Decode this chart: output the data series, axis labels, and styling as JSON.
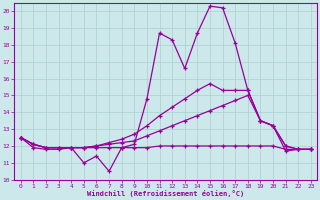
{
  "background_color": "#cce8ea",
  "grid_color": "#aacfcf",
  "line_color": "#990099",
  "x_label": "Windchill (Refroidissement éolien,°C)",
  "xlim": [
    -0.5,
    23.5
  ],
  "ylim": [
    10,
    20.5
  ],
  "yticks": [
    10,
    11,
    12,
    13,
    14,
    15,
    16,
    17,
    18,
    19,
    20
  ],
  "xticks": [
    0,
    1,
    2,
    3,
    4,
    5,
    6,
    7,
    8,
    9,
    10,
    11,
    12,
    13,
    14,
    15,
    16,
    17,
    18,
    19,
    20,
    21,
    22,
    23
  ],
  "series": [
    [
      12.5,
      11.9,
      11.8,
      11.8,
      11.9,
      11.0,
      11.4,
      10.5,
      11.9,
      12.1,
      14.8,
      18.7,
      18.3,
      16.6,
      18.7,
      20.3,
      20.2,
      18.1,
      15.3,
      13.5,
      13.2,
      11.7,
      11.8,
      11.8
    ],
    [
      12.5,
      12.1,
      11.9,
      11.9,
      11.9,
      11.9,
      11.9,
      11.9,
      11.9,
      11.9,
      11.9,
      12.0,
      12.0,
      12.0,
      12.0,
      12.0,
      12.0,
      12.0,
      12.0,
      12.0,
      12.0,
      11.8,
      11.8,
      11.8
    ],
    [
      12.5,
      12.1,
      11.9,
      11.9,
      11.9,
      11.9,
      12.0,
      12.1,
      12.2,
      12.3,
      12.6,
      12.9,
      13.2,
      13.5,
      13.8,
      14.1,
      14.4,
      14.7,
      15.0,
      13.5,
      13.2,
      12.0,
      11.8,
      11.8
    ],
    [
      12.5,
      12.1,
      11.9,
      11.9,
      11.9,
      11.9,
      12.0,
      12.2,
      12.4,
      12.7,
      13.2,
      13.8,
      14.3,
      14.8,
      15.3,
      15.7,
      15.3,
      15.3,
      15.3,
      13.5,
      13.2,
      12.0,
      11.8,
      11.8
    ]
  ]
}
